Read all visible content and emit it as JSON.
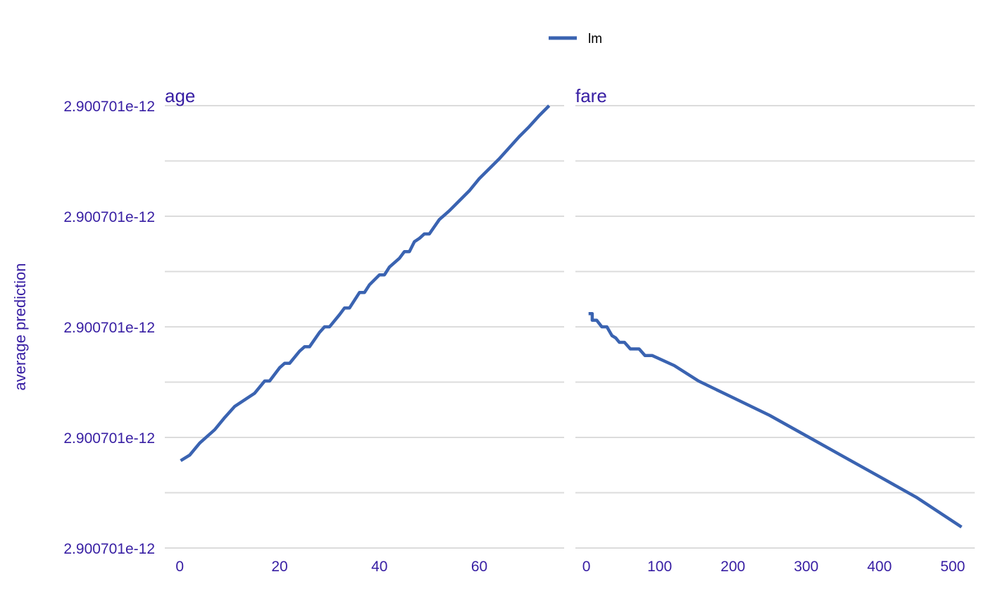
{
  "chart_data": {
    "type": "line",
    "ylabel": "average prediction",
    "legend": {
      "placement": "top-center",
      "entries": [
        {
          "name": "lm",
          "color": "#3a63b1"
        }
      ]
    },
    "y_tick_labels": [
      "2.900701e-12",
      "2.900701e-12",
      "2.900701e-12",
      "2.900701e-12",
      "2.900701e-12"
    ],
    "y_value_note": "",
    "ylim": [
      0,
      8
    ],
    "y_major_ticks": [
      0,
      2,
      4,
      6,
      8
    ],
    "y_minor_ticks": [
      1,
      3,
      5,
      7
    ],
    "grid": true,
    "panels": [
      {
        "title": "age",
        "xlim": [
          -3,
          77
        ],
        "x_ticks": [
          0,
          20,
          40,
          60
        ],
        "x_tick_labels": [
          "0",
          "20",
          "40",
          "60"
        ],
        "series": [
          {
            "name": "lm",
            "color": "#3a63b1",
            "x": [
              0.17,
              2,
              4,
              7,
              9,
              11,
              13,
              15,
              17,
              18,
              20,
              21,
              22,
              24,
              25,
              26,
              28,
              29,
              30,
              32,
              33,
              34,
              35,
              36,
              37,
              38,
              40,
              41,
              42,
              44,
              45,
              46,
              47,
              48,
              49,
              50,
              52,
              54,
              56,
              58,
              60,
              62,
              64,
              66,
              68,
              70,
              72,
              74
            ],
            "y": [
              1.58,
              1.68,
              1.9,
              2.14,
              2.36,
              2.56,
              2.68,
              2.8,
              3.02,
              3.02,
              3.26,
              3.34,
              3.34,
              3.56,
              3.64,
              3.64,
              3.9,
              4.0,
              4.0,
              4.22,
              4.34,
              4.34,
              4.48,
              4.62,
              4.62,
              4.76,
              4.94,
              4.94,
              5.08,
              5.24,
              5.36,
              5.36,
              5.54,
              5.6,
              5.68,
              5.68,
              5.94,
              6.1,
              6.28,
              6.46,
              6.68,
              6.86,
              7.04,
              7.24,
              7.44,
              7.62,
              7.82,
              8.0
            ]
          }
        ]
      },
      {
        "title": "fare",
        "xlim": [
          -15,
          530
        ],
        "x_ticks": [
          0,
          100,
          200,
          300,
          400,
          500
        ],
        "x_tick_labels": [
          "0",
          "100",
          "200",
          "300",
          "400",
          "500"
        ],
        "series": [
          {
            "name": "lm",
            "color": "#3a63b1",
            "x": [
              3,
              8,
              8,
              14,
              21,
              21,
              28,
              35,
              40,
              45,
              52,
              60,
              66,
              72,
              80,
              82,
              90,
              120,
              153,
              200,
              250,
              300,
              350,
              400,
              450,
              512
            ],
            "y": [
              4.24,
              4.24,
              4.12,
              4.12,
              4.0,
              4.0,
              4.0,
              3.84,
              3.8,
              3.72,
              3.72,
              3.6,
              3.6,
              3.6,
              3.48,
              3.48,
              3.48,
              3.3,
              3.02,
              2.72,
              2.4,
              2.03,
              1.66,
              1.29,
              0.92,
              0.38
            ]
          }
        ]
      }
    ]
  }
}
